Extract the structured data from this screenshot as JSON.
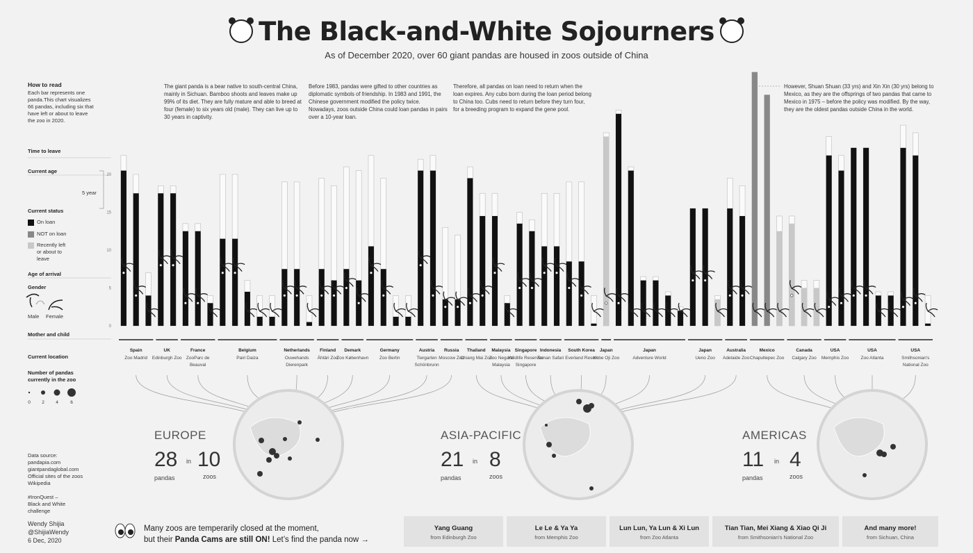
{
  "title": "The Black-and-White Sojourners",
  "subtitle": "As of December 2020, over 60 giant pandas are housed in zoos outside of China",
  "how_to_read": {
    "heading": "How to read",
    "text": "Each bar represents one panda.This chart visualizes 66 pandas, including six that have left or about to leave the zoo in 2020.",
    "time_to_leave": "Time to leave",
    "current_age": "Current age",
    "five_year": "5 year",
    "current_status": "Current status",
    "status_on_loan": "On loan",
    "status_not_on_loan": "NOT on loan",
    "status_recently_left": "Recently left or about to leave",
    "age_of_arrival": "Age of arrival",
    "gender": "Gender",
    "male": "Male",
    "female": "Female",
    "mother_and_child": "Mother and child",
    "current_location": "Current location",
    "number_of_pandas": "Number of pandas currently in the zoo",
    "size_ticks": [
      "0",
      "2",
      "4",
      "6"
    ]
  },
  "notes": [
    "The giant panda is a bear native to south-central China, mainly in Sichuan. Bamboo shoots and leaves make up 99% of its diet. They are fully mature and able to breed at four (female) to six years old (male). They can live up to 30 years in captivity.",
    "Before 1983, pandas were gifted to other countries as diplomatic symbols of friendship. In 1983 and 1991, the Chinese government modified the policy twice. Nowadays, zoos outside China could loan pandas in pairs over a 10-year loan.",
    "Therefore, all pandas on loan need to return when the loan expires. Any cubs born during the loan period belong to China too. Cubs need to return before they turn four, for a breeding program to expand the gene pool.",
    "However, Shuan Shuan (33 yrs) and Xin Xin (30 yrs) belong to Mexico, as they are the offsprings of two pandas that came to Mexico in 1975 – before the policy was modified. By the way, they are the oldest pandas outside China in the world."
  ],
  "colors": {
    "on_loan": "#111111",
    "not_on_loan": "#888888",
    "recently_left": "#c8c8c8",
    "outline": "#bbbbbb",
    "background": "#f2f2f2"
  },
  "chart_data": {
    "type": "bar",
    "ylabel": "",
    "ylim": [
      0,
      34
    ],
    "y_ticks": [
      0,
      5,
      10,
      15,
      20
    ],
    "series_names": [
      "Current age",
      "Time to leave",
      "Age of arrival"
    ],
    "pandas": [
      {
        "zoo": "Spain Zoo Madrid",
        "age": 20.5,
        "leave": 22.5,
        "arrival": 7,
        "status": "on_loan"
      },
      {
        "zoo": "Spain Zoo Madrid",
        "age": 17.5,
        "leave": 20,
        "arrival": 4,
        "status": "on_loan"
      },
      {
        "zoo": "Spain Zoo Madrid",
        "age": 4,
        "leave": 7,
        "arrival": 0,
        "status": "on_loan"
      },
      {
        "zoo": "UK Edinburgh Zoo",
        "age": 17.5,
        "leave": 18.5,
        "arrival": 8,
        "status": "on_loan"
      },
      {
        "zoo": "UK Edinburgh Zoo",
        "age": 17.5,
        "leave": 18.5,
        "arrival": 8,
        "status": "on_loan"
      },
      {
        "zoo": "France ZooParc de Beauval",
        "age": 12.5,
        "leave": 13.5,
        "arrival": 3,
        "status": "on_loan"
      },
      {
        "zoo": "France ZooParc de Beauval",
        "age": 12.5,
        "leave": 13.5,
        "arrival": 3,
        "status": "on_loan"
      },
      {
        "zoo": "France ZooParc de Beauval",
        "age": 3,
        "leave": 4,
        "arrival": 0,
        "status": "on_loan"
      },
      {
        "zoo": "Belgium Pairi Daiza",
        "age": 11.5,
        "leave": 20,
        "arrival": 7,
        "status": "on_loan"
      },
      {
        "zoo": "Belgium Pairi Daiza",
        "age": 11.5,
        "leave": 20,
        "arrival": 7,
        "status": "on_loan"
      },
      {
        "zoo": "Belgium Pairi Daiza",
        "age": 4.5,
        "leave": 6,
        "arrival": 0,
        "status": "on_loan"
      },
      {
        "zoo": "Belgium Pairi Daiza",
        "age": 1.2,
        "leave": 4,
        "arrival": 0,
        "status": "on_loan"
      },
      {
        "zoo": "Belgium Pairi Daiza",
        "age": 1.2,
        "leave": 4,
        "arrival": 0,
        "status": "on_loan"
      },
      {
        "zoo": "Netherlands Ouwehands Dierenpark",
        "age": 7.5,
        "leave": 19,
        "arrival": 4,
        "status": "on_loan"
      },
      {
        "zoo": "Netherlands Ouwehands Dierenpark",
        "age": 7.5,
        "leave": 19,
        "arrival": 4,
        "status": "on_loan"
      },
      {
        "zoo": "Netherlands Ouwehands Dierenpark",
        "age": 0.5,
        "leave": 4,
        "arrival": 0,
        "status": "on_loan"
      },
      {
        "zoo": "Finland Ähtäri Zoo",
        "age": 7.5,
        "leave": 19.5,
        "arrival": 4,
        "status": "on_loan"
      },
      {
        "zoo": "Finland Ähtäri Zoo",
        "age": 6,
        "leave": 18.5,
        "arrival": 4,
        "status": "on_loan"
      },
      {
        "zoo": "Demark Zoo København",
        "age": 7.5,
        "leave": 21,
        "arrival": 5,
        "status": "on_loan"
      },
      {
        "zoo": "Demark Zoo København",
        "age": 6,
        "leave": 20.5,
        "arrival": 3,
        "status": "on_loan"
      },
      {
        "zoo": "Germany Zoo Berlin",
        "age": 10.5,
        "leave": 22.5,
        "arrival": 7,
        "status": "on_loan"
      },
      {
        "zoo": "Germany Zoo Berlin",
        "age": 7.5,
        "leave": 19.5,
        "arrival": 4,
        "status": "on_loan"
      },
      {
        "zoo": "Germany Zoo Berlin",
        "age": 1.2,
        "leave": 4,
        "arrival": 0,
        "status": "on_loan"
      },
      {
        "zoo": "Germany Zoo Berlin",
        "age": 1.2,
        "leave": 4,
        "arrival": 0,
        "status": "on_loan"
      },
      {
        "zoo": "Austria Tiergarten Schönbrunn",
        "age": 20.5,
        "leave": 22,
        "arrival": 8,
        "status": "on_loan"
      },
      {
        "zoo": "Austria Tiergarten Schönbrunn",
        "age": 20.5,
        "leave": 22.5,
        "arrival": 4,
        "status": "on_loan"
      },
      {
        "zoo": "Russia Moscow Zoo",
        "age": 3.5,
        "leave": 13,
        "arrival": 2.5,
        "status": "on_loan"
      },
      {
        "zoo": "Russia Moscow Zoo",
        "age": 3.5,
        "leave": 12,
        "arrival": 2.5,
        "status": "on_loan"
      },
      {
        "zoo": "Thailand Chiang Mai Zoo",
        "age": 19.5,
        "leave": 21,
        "arrival": 3,
        "status": "on_loan"
      },
      {
        "zoo": "Thailand Chiang Mai Zoo",
        "age": 14.5,
        "leave": 17.5,
        "arrival": 4,
        "status": "on_loan"
      },
      {
        "zoo": "Malaysia Zoo Negara Malaysia",
        "age": 14.5,
        "leave": 17.5,
        "arrival": 7,
        "status": "on_loan"
      },
      {
        "zoo": "Malaysia Zoo Negara Malaysia",
        "age": 3,
        "leave": 4,
        "arrival": 0,
        "status": "on_loan"
      },
      {
        "zoo": "Singapore Wildlife Reserves Singapore",
        "age": 13.5,
        "leave": 15,
        "arrival": 5,
        "status": "on_loan"
      },
      {
        "zoo": "Singapore Wildlife Reserves Singapore",
        "age": 12.5,
        "leave": 14,
        "arrival": 5,
        "status": "on_loan"
      },
      {
        "zoo": "Indonesia Taman Safari",
        "age": 10.5,
        "leave": 17.5,
        "arrival": 7,
        "status": "on_loan"
      },
      {
        "zoo": "Indonesia Taman Safari",
        "age": 10.5,
        "leave": 17.5,
        "arrival": 7,
        "status": "on_loan"
      },
      {
        "zoo": "South Korea Everland Resort",
        "age": 8.5,
        "leave": 19,
        "arrival": 5,
        "status": "on_loan"
      },
      {
        "zoo": "South Korea Everland Resort",
        "age": 8.5,
        "leave": 19,
        "arrival": 4,
        "status": "on_loan"
      },
      {
        "zoo": "South Korea Everland Resort",
        "age": 0.3,
        "leave": 4,
        "arrival": 0,
        "status": "on_loan"
      },
      {
        "zoo": "Japan Kobe Oji Zoo",
        "age": 25,
        "leave": 25.5,
        "arrival": 3,
        "status": "recently_left"
      },
      {
        "zoo": "Japan Adventure World",
        "age": 28,
        "leave": 28.5,
        "arrival": 3,
        "status": "on_loan"
      },
      {
        "zoo": "Japan Adventure World",
        "age": 20.5,
        "leave": 21,
        "arrival": 0,
        "status": "on_loan"
      },
      {
        "zoo": "Japan Adventure World",
        "age": 6,
        "leave": 6.5,
        "arrival": 0,
        "status": "on_loan"
      },
      {
        "zoo": "Japan Adventure World",
        "age": 6,
        "leave": 6.5,
        "arrival": 0,
        "status": "on_loan"
      },
      {
        "zoo": "Japan Adventure World",
        "age": 4,
        "leave": 4.5,
        "arrival": 0,
        "status": "on_loan"
      },
      {
        "zoo": "Japan Adventure World",
        "age": 2,
        "leave": 2.5,
        "arrival": 0,
        "status": "on_loan"
      },
      {
        "zoo": "Japan Ueno Zoo",
        "age": 15.5,
        "leave": 15.5,
        "arrival": 6,
        "status": "on_loan"
      },
      {
        "zoo": "Japan Ueno Zoo",
        "age": 15.5,
        "leave": 15.5,
        "arrival": 6,
        "status": "on_loan"
      },
      {
        "zoo": "Japan Ueno Zoo",
        "age": 3.5,
        "leave": 4,
        "arrival": 0,
        "status": "recently_left"
      },
      {
        "zoo": "Australia Adelaide Zoo",
        "age": 15.5,
        "leave": 19.5,
        "arrival": 4,
        "status": "on_loan"
      },
      {
        "zoo": "Australia Adelaide Zoo",
        "age": 14.5,
        "leave": 18.5,
        "arrival": 4,
        "status": "on_loan"
      },
      {
        "zoo": "Mexico Chapultepec Zoo",
        "age": 33.5,
        "leave": 33.5,
        "arrival": 0,
        "status": "not_on_loan"
      },
      {
        "zoo": "Mexico Chapultepec Zoo",
        "age": 30.5,
        "leave": 30.5,
        "arrival": 0,
        "status": "not_on_loan"
      },
      {
        "zoo": "Mexico Chapultepec Zoo",
        "age": 12.5,
        "leave": 14.5,
        "arrival": 0,
        "status": "recently_left"
      },
      {
        "zoo": "Canada Calgary Zoo",
        "age": 13.5,
        "leave": 14.5,
        "arrival": 4,
        "status": "recently_left"
      },
      {
        "zoo": "Canada Calgary Zoo",
        "age": 5,
        "leave": 6,
        "arrival": 0,
        "status": "recently_left"
      },
      {
        "zoo": "Canada Calgary Zoo",
        "age": 5,
        "leave": 6,
        "arrival": 0,
        "status": "recently_left"
      },
      {
        "zoo": "USA Memphis Zoo",
        "age": 22.5,
        "leave": 25,
        "arrival": 2.5,
        "status": "on_loan"
      },
      {
        "zoo": "USA Memphis Zoo",
        "age": 20.5,
        "leave": 22.5,
        "arrival": 3,
        "status": "on_loan"
      },
      {
        "zoo": "USA Zoo Atlanta",
        "age": 23.5,
        "leave": 23.5,
        "arrival": 4,
        "status": "on_loan"
      },
      {
        "zoo": "USA Zoo Atlanta",
        "age": 23.5,
        "leave": 23.5,
        "arrival": 4,
        "status": "on_loan"
      },
      {
        "zoo": "USA Zoo Atlanta",
        "age": 4,
        "leave": 4.5,
        "arrival": 0,
        "status": "on_loan"
      },
      {
        "zoo": "USA Zoo Atlanta",
        "age": 4,
        "leave": 4.5,
        "arrival": 0,
        "status": "on_loan"
      },
      {
        "zoo": "USA Smithsonian's National Zoo",
        "age": 23.5,
        "leave": 26.5,
        "arrival": 2.5,
        "status": "on_loan"
      },
      {
        "zoo": "USA Smithsonian's National Zoo",
        "age": 22.5,
        "leave": 25.5,
        "arrival": 3,
        "status": "on_loan"
      },
      {
        "zoo": "USA Smithsonian's National Zoo",
        "age": 0.3,
        "leave": 4,
        "arrival": 0,
        "status": "on_loan"
      }
    ]
  },
  "locations": [
    {
      "country": "Spain",
      "zoo": "Zoo Madrid"
    },
    {
      "country": "UK",
      "zoo": "Edinburgh Zoo"
    },
    {
      "country": "France",
      "zoo": "ZooParc de Beauval"
    },
    {
      "country": "Belgium",
      "zoo": "Pairi Daiza"
    },
    {
      "country": "Netherlands",
      "zoo": "Ouwehands Dierenpark"
    },
    {
      "country": "Finland",
      "zoo": "Ähtäri Zoo"
    },
    {
      "country": "Demark",
      "zoo": "Zoo København"
    },
    {
      "country": "Germany",
      "zoo": "Zoo Berlin"
    },
    {
      "country": "Austria",
      "zoo": "Tiergarten Schönbrunn"
    },
    {
      "country": "Russia",
      "zoo": "Moscow Zoo"
    },
    {
      "country": "Thailand",
      "zoo": "Chiang Mai Zoo"
    },
    {
      "country": "Malaysia",
      "zoo": "Zoo Negara Malaysia"
    },
    {
      "country": "Singapore",
      "zoo": "Wildlife Reserves Singapore"
    },
    {
      "country": "Indonesia",
      "zoo": "Taman Safari"
    },
    {
      "country": "South Korea",
      "zoo": "Everland Resort"
    },
    {
      "country": "Japan",
      "zoo": "Kobe Oji Zoo"
    },
    {
      "country": "Japan",
      "zoo": "Adventure World"
    },
    {
      "country": "Japan",
      "zoo": "Ueno Zoo"
    },
    {
      "country": "Australia",
      "zoo": "Adelaide Zoo"
    },
    {
      "country": "Mexico",
      "zoo": "Chapultepec Zoo"
    },
    {
      "country": "Canada",
      "zoo": "Calgary Zoo"
    },
    {
      "country": "USA",
      "zoo": "Memphis Zoo"
    },
    {
      "country": "USA",
      "zoo": "Zoo Atlanta"
    },
    {
      "country": "USA",
      "zoo": "Smithsonian's National Zoo"
    }
  ],
  "regions": {
    "europe": {
      "name": "EUROPE",
      "pandas": "28",
      "in": "in",
      "zoos": "10",
      "pandas_label": "pandas",
      "zoos_label": "zoos"
    },
    "asia": {
      "name": "ASIA-PACIFIC",
      "pandas": "21",
      "in": "in",
      "zoos": "8",
      "pandas_label": "pandas",
      "zoos_label": "zoos"
    },
    "americas": {
      "name": "AMERICAS",
      "pandas": "11",
      "in": "in",
      "zoos": "4",
      "pandas_label": "pandas",
      "zoos_label": "zoos"
    }
  },
  "sidebar": {
    "data_source": "Data source:\npandapia.com\ngiantpandaglobal.com\nOfficial sites of the zoos\nWikipedia",
    "iron_quest": "#IronQuest –\nBlack and White\nchallenge",
    "author": "Wendy Shijia\n@ShijiaWendy\n6 Dec, 2020"
  },
  "footer": {
    "line1": "Many zoos are temperarily closed at the moment,",
    "line2_pre": "but their ",
    "line2_bold": "Panda Cams are still ON!",
    "line2_post": " Let’s find the panda now →",
    "cams": [
      {
        "name": "Yang Guang",
        "from": "from Edinburgh Zoo"
      },
      {
        "name": "Le Le & Ya Ya",
        "from": "from Memphis Zoo"
      },
      {
        "name": "Lun Lun, Ya Lun & Xi Lun",
        "from": "from Zoo Atlanta"
      },
      {
        "name": "Tian Tian, Mei Xiang & Xiao Qi Ji",
        "from": "from Smithsonian's National Zoo"
      },
      {
        "name": "And many more!",
        "from": "from Sichuan, China"
      }
    ]
  }
}
